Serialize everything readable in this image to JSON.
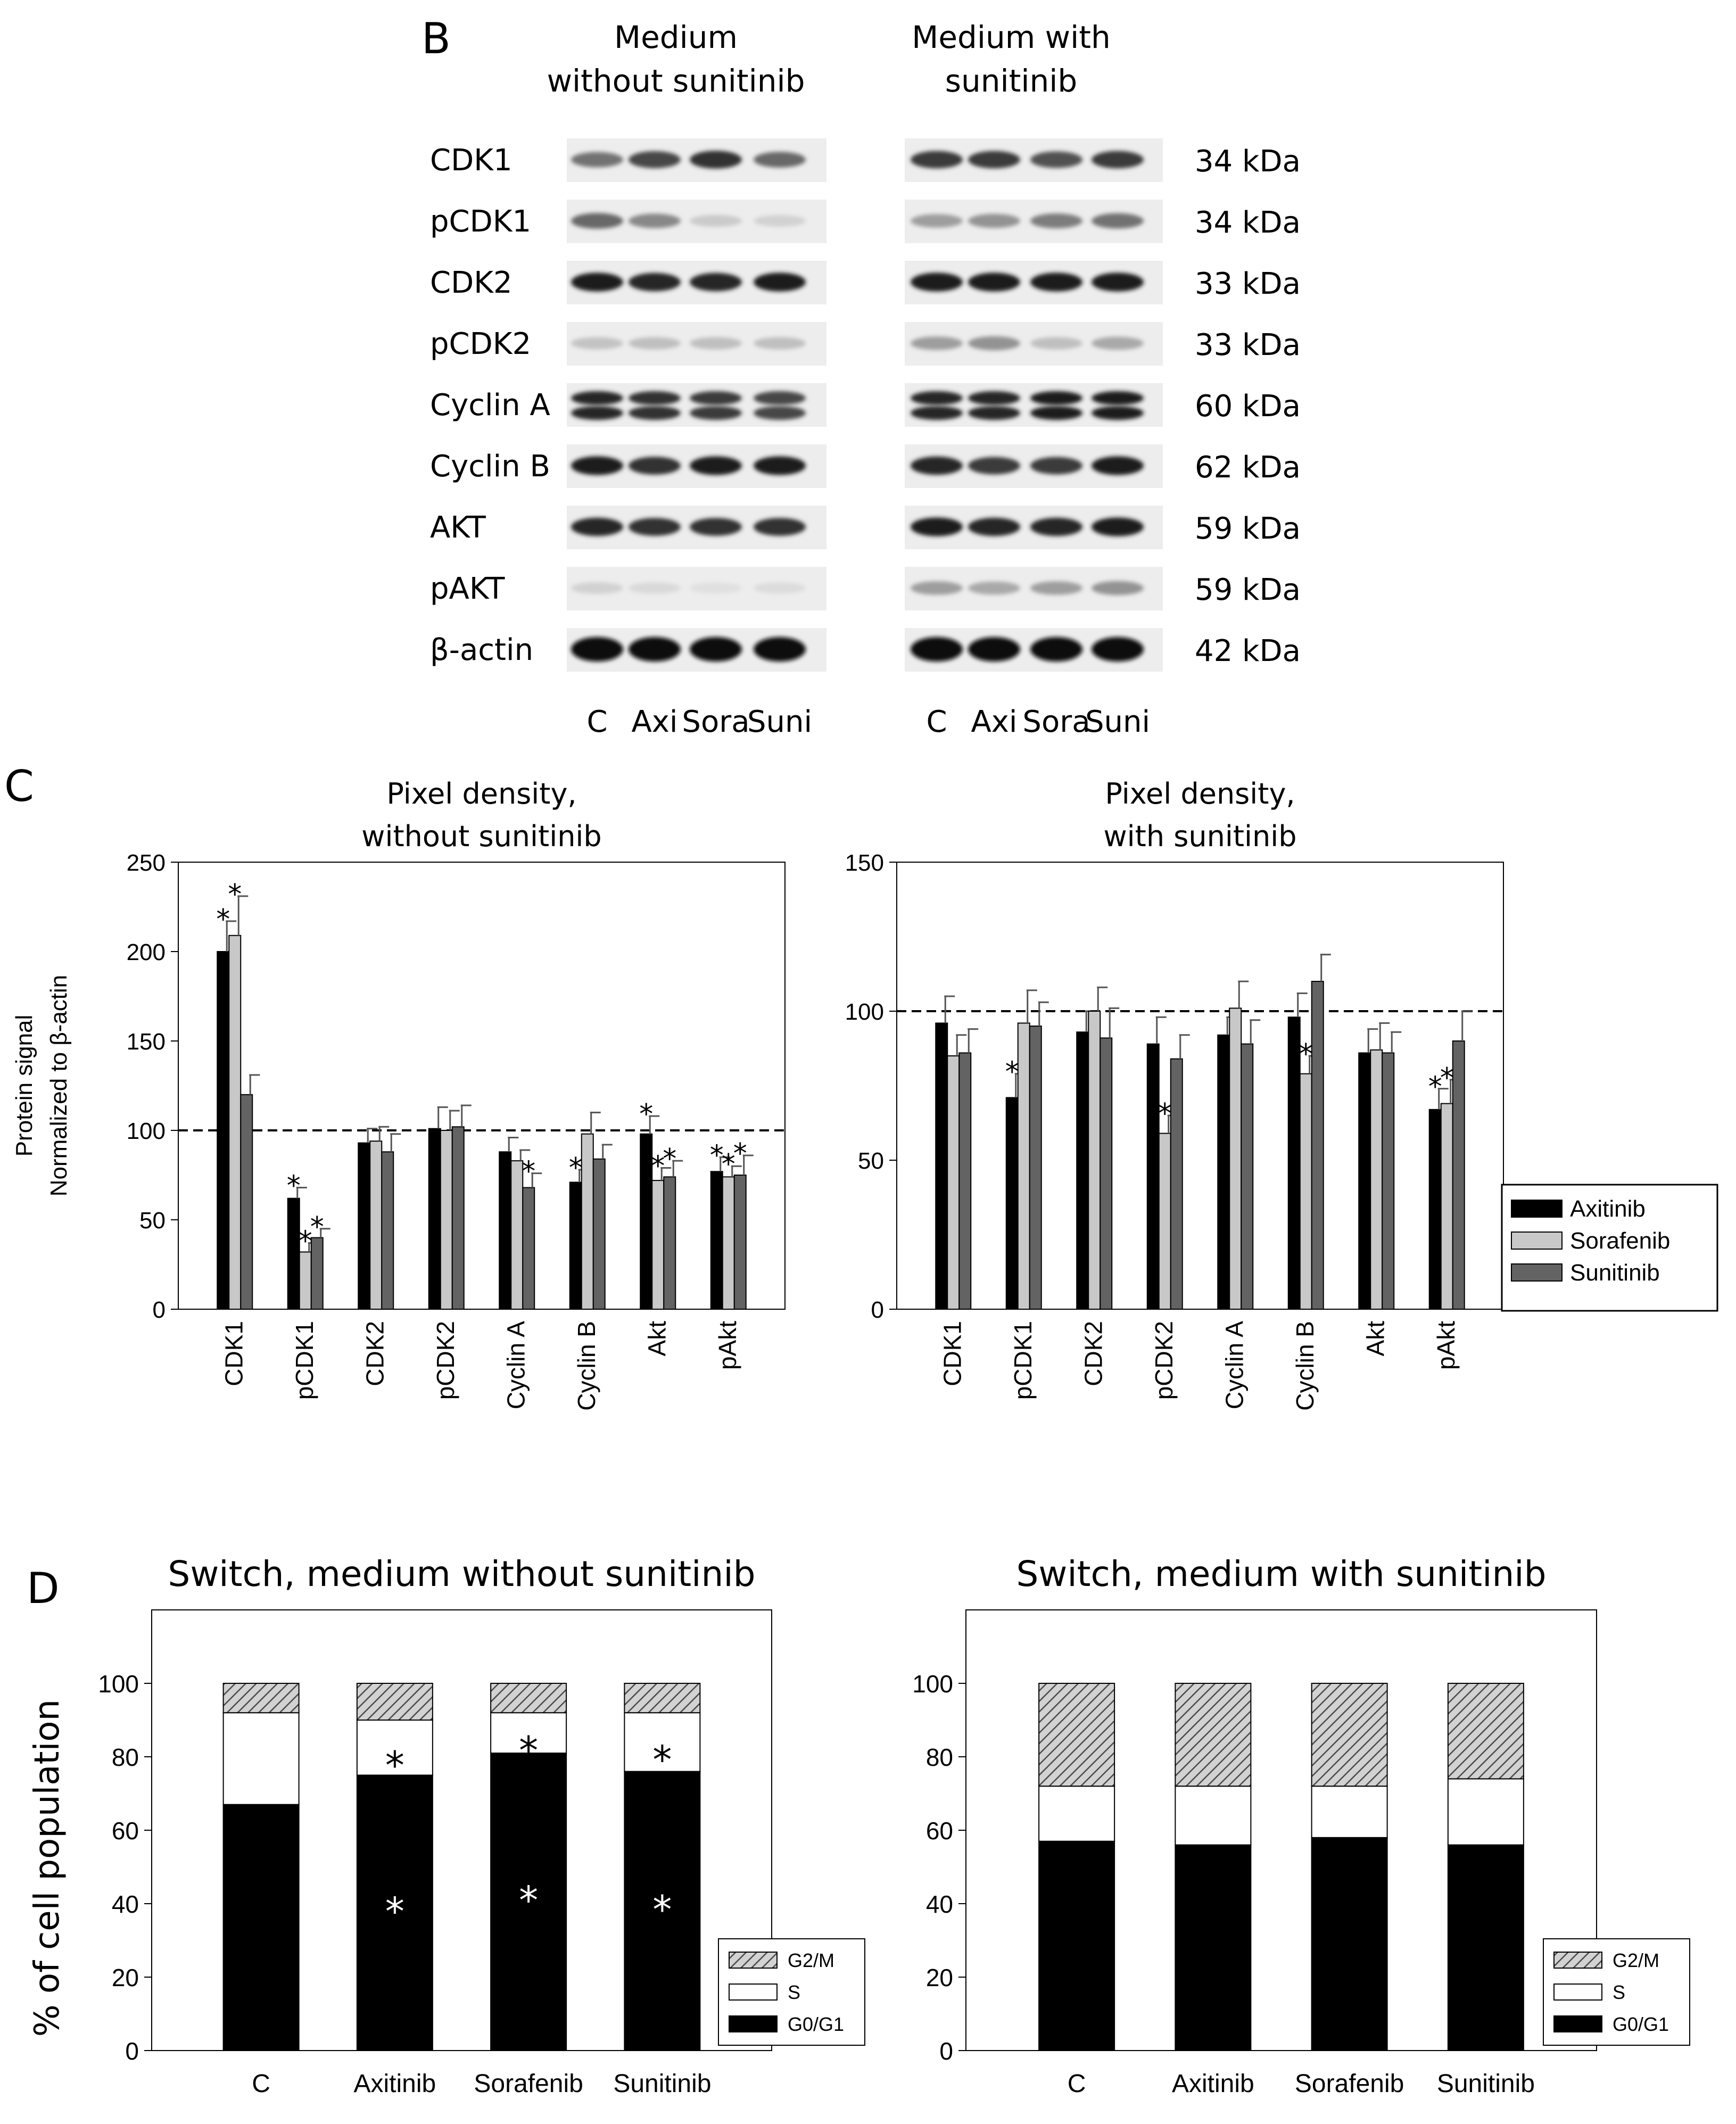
{
  "figure": {
    "panel_b": {
      "letter": "B",
      "group_titles": [
        [
          "Medium",
          "without sunitinib"
        ],
        [
          "Medium with",
          "sunitinib"
        ]
      ],
      "blots": [
        {
          "name": "CDK1",
          "size": "34 kDa"
        },
        {
          "name": "pCDK1",
          "size": "34 kDa"
        },
        {
          "name": "CDK2",
          "size": "33 kDa"
        },
        {
          "name": "pCDK2",
          "size": "33 kDa"
        },
        {
          "name": "Cyclin A",
          "size": "60 kDa"
        },
        {
          "name": "Cyclin B",
          "size": "62 kDa"
        },
        {
          "name": "AKT",
          "size": "59 kDa"
        },
        {
          "name": "pAKT",
          "size": "59 kDa"
        },
        {
          "name": "β-actin",
          "size": "42 kDa"
        }
      ],
      "lanes": [
        "C",
        "Axi",
        "Sora",
        "Suni"
      ]
    },
    "panel_c": {
      "letter": "C",
      "ylabel": [
        "Protein signal",
        "Normalized to β-actin"
      ],
      "legend": [
        "Axitinib",
        "Sorafenib",
        "Sunitinib"
      ],
      "colors": {
        "Axitinib": "#000000",
        "Sorafenib": "#c8c8c8",
        "Sunitinib": "#636363"
      }
    },
    "panel_d": {
      "letter": "D",
      "ylabel": "% of cell population",
      "legend": [
        "G2/M",
        "S",
        "G0/G1"
      ],
      "colors": {
        "G0/G1": "#000000",
        "S": "#ffffff",
        "G2/M": "#9a9a9a"
      }
    }
  },
  "chart_data": [
    {
      "type": "bar",
      "title": "Pixel density, without sunitinib",
      "categories": [
        "CDK1",
        "pCDK1",
        "CDK2",
        "pCDK2",
        "Cyclin A",
        "Cyclin B",
        "Akt",
        "pAkt"
      ],
      "series": [
        {
          "name": "Axitinib",
          "values": [
            200,
            62,
            93,
            101,
            88,
            71,
            98,
            77
          ],
          "errors": [
            17,
            6,
            8,
            12,
            8,
            7,
            10,
            8
          ]
        },
        {
          "name": "Sorafenib",
          "values": [
            209,
            32,
            94,
            100,
            83,
            98,
            72,
            74
          ],
          "errors": [
            22,
            5,
            8,
            11,
            6,
            12,
            7,
            6
          ]
        },
        {
          "name": "Sunitinib",
          "values": [
            120,
            40,
            88,
            102,
            68,
            84,
            74,
            75
          ],
          "errors": [
            11,
            5,
            10,
            12,
            8,
            8,
            9,
            11
          ]
        }
      ],
      "significant": [
        [
          true,
          true,
          false,
          false,
          false,
          true,
          true,
          true
        ],
        [
          true,
          true,
          false,
          false,
          false,
          false,
          true,
          true
        ],
        [
          false,
          true,
          false,
          false,
          true,
          false,
          true,
          true
        ]
      ],
      "reference_line": 100,
      "ylim": [
        0,
        250
      ],
      "yticks": [
        0,
        50,
        100,
        150,
        200,
        250
      ],
      "grid": false
    },
    {
      "type": "bar",
      "title": "Pixel density, with sunitinib",
      "categories": [
        "CDK1",
        "pCDK1",
        "CDK2",
        "pCDK2",
        "Cyclin A",
        "Cyclin B",
        "Akt",
        "pAkt"
      ],
      "series": [
        {
          "name": "Axitinib",
          "values": [
            96,
            71,
            93,
            89,
            92,
            98,
            86,
            67
          ],
          "errors": [
            9,
            8,
            7,
            9,
            6,
            8,
            8,
            7
          ]
        },
        {
          "name": "Sorafenib",
          "values": [
            85,
            96,
            100,
            59,
            101,
            79,
            87,
            69
          ],
          "errors": [
            7,
            11,
            8,
            6,
            9,
            6,
            9,
            8
          ]
        },
        {
          "name": "Sunitinib",
          "values": [
            86,
            95,
            91,
            84,
            89,
            110,
            86,
            90
          ],
          "errors": [
            8,
            8,
            10,
            8,
            8,
            9,
            7,
            10
          ]
        }
      ],
      "significant": [
        [
          false,
          true,
          false,
          false,
          false,
          false,
          false,
          true
        ],
        [
          false,
          false,
          false,
          true,
          false,
          true,
          false,
          true
        ],
        [
          false,
          false,
          false,
          false,
          false,
          false,
          false,
          false
        ]
      ],
      "reference_line": 100,
      "ylim": [
        0,
        150
      ],
      "yticks": [
        0,
        50,
        100,
        150
      ],
      "legend": "right",
      "grid": false
    },
    {
      "type": "bar",
      "stacked": true,
      "title": "Switch, medium without sunitinib",
      "categories": [
        "C",
        "Axitinib",
        "Sorafenib",
        "Sunitinib"
      ],
      "series": [
        {
          "name": "G0/G1",
          "values": [
            67,
            75,
            81,
            76
          ]
        },
        {
          "name": "S",
          "values": [
            25,
            15,
            11,
            16
          ]
        },
        {
          "name": "G2/M",
          "values": [
            8,
            10,
            8,
            8
          ]
        }
      ],
      "significant": {
        "G0/G1": [
          false,
          true,
          true,
          true
        ],
        "S": [
          false,
          true,
          true,
          true
        ]
      },
      "ylabel": "% of cell population",
      "ylim": [
        0,
        120
      ],
      "yticks": [
        0,
        20,
        40,
        60,
        80,
        100
      ],
      "legend": "bottom-right",
      "grid": false
    },
    {
      "type": "bar",
      "stacked": true,
      "title": "Switch, medium with sunitinib",
      "categories": [
        "C",
        "Axitinib",
        "Sorafenib",
        "Sunitinib"
      ],
      "series": [
        {
          "name": "G0/G1",
          "values": [
            57,
            56,
            58,
            56
          ]
        },
        {
          "name": "S",
          "values": [
            15,
            16,
            14,
            18
          ]
        },
        {
          "name": "G2/M",
          "values": [
            28,
            28,
            28,
            26
          ]
        }
      ],
      "significant": {
        "G0/G1": [
          false,
          false,
          false,
          false
        ],
        "S": [
          false,
          false,
          false,
          false
        ]
      },
      "ylim": [
        0,
        120
      ],
      "yticks": [
        0,
        20,
        40,
        60,
        80,
        100
      ],
      "legend": "bottom-right",
      "grid": false
    }
  ]
}
